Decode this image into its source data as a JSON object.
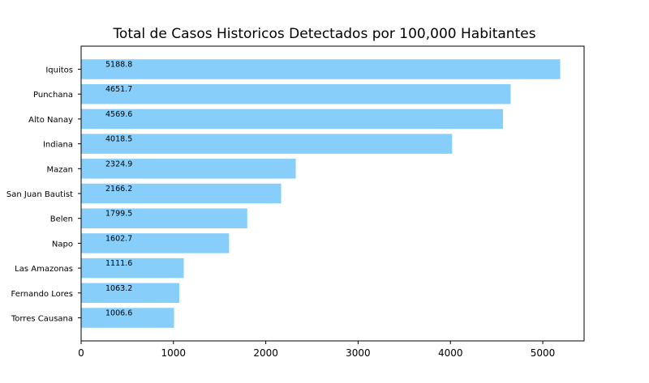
{
  "chart_data": {
    "type": "bar",
    "orientation": "horizontal",
    "title": "Total de Casos Historicos Detectados por 100,000 Habitantes",
    "xlabel": "",
    "ylabel": "",
    "xlim": [
      0,
      5447.7
    ],
    "xticks": [
      0,
      1000,
      2000,
      3000,
      4000,
      5000
    ],
    "xtick_labels": [
      "0",
      "1000",
      "2000",
      "3000",
      "4000",
      "5000"
    ],
    "categories": [
      "Iquitos",
      "Punchana",
      "Alto Nanay",
      "Indiana",
      "Mazan",
      "San Juan Bautist",
      "Belen",
      "Napo",
      "Las Amazonas",
      "Fernando Lores",
      "Torres Causana"
    ],
    "values": [
      5188.8,
      4651.7,
      4569.6,
      4018.5,
      2324.9,
      2166.2,
      1799.5,
      1602.7,
      1111.6,
      1063.2,
      1006.6
    ],
    "value_labels": [
      "5188.8",
      "4651.7",
      "4569.6",
      "4018.5",
      "2324.9",
      "2166.2",
      "1799.5",
      "1602.7",
      "1111.6",
      "1063.2",
      "1006.6"
    ],
    "bar_color": "#87cefa",
    "grid": false,
    "legend": "none"
  }
}
